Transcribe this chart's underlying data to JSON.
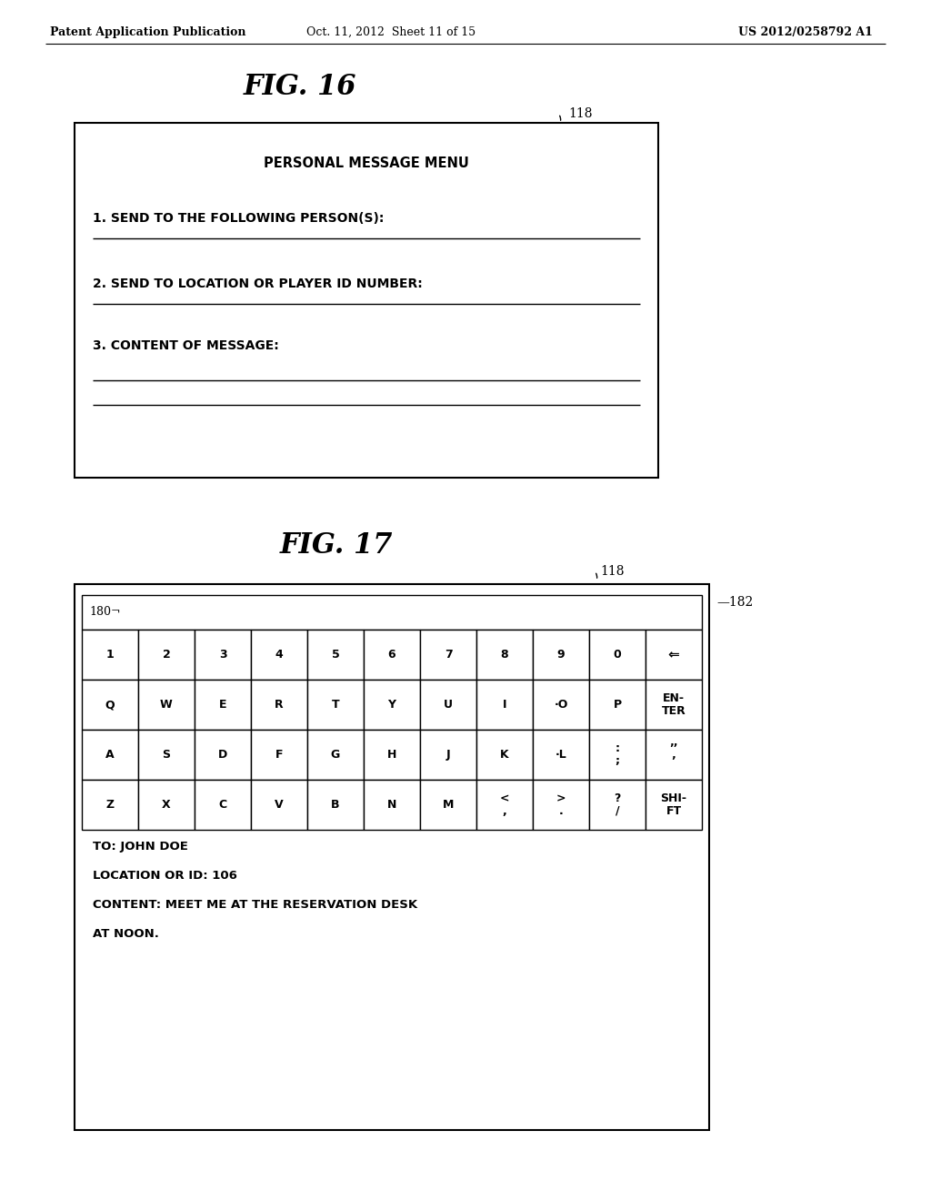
{
  "bg_color": "#ffffff",
  "header_left": "Patent Application Publication",
  "header_mid": "Oct. 11, 2012  Sheet 11 of 15",
  "header_right": "US 2012/0258792 A1",
  "fig16_title": "FIG. 16",
  "fig16_label": "118",
  "fig16_content_title": "PERSONAL MESSAGE MENU",
  "fig16_line1": "1. SEND TO THE FOLLOWING PERSON(S):",
  "fig16_line2": "2. SEND TO LOCATION OR PLAYER ID NUMBER:",
  "fig16_line3": "3. CONTENT OF MESSAGE:",
  "fig17_title": "FIG. 17",
  "fig17_label": "118",
  "fig17_label_180": "180",
  "fig17_label_182": "182",
  "keyboard_rows": [
    [
      "1",
      "2",
      "3",
      "4",
      "5",
      "6",
      "7",
      "8",
      "9",
      "0",
      "<<"
    ],
    [
      "Q",
      "W",
      "E",
      "R",
      "T",
      "Y",
      "U",
      "I",
      "·O",
      "P",
      "EN-\nTER"
    ],
    [
      "A",
      "S",
      "D",
      "F",
      "G",
      "H",
      "J",
      "K",
      "·L",
      ":\n;",
      "’’\n’"
    ],
    [
      "Z",
      "X",
      "C",
      "V",
      "B",
      "N",
      "M",
      "<\n,",
      ">\n.",
      "?\n/",
      "SHI-\nFT"
    ]
  ],
  "fig17_text_lines": [
    "TO: JOHN DOE",
    "LOCATION OR ID: 106",
    "CONTENT: MEET ME AT THE RESERVATION DESK",
    "AT NOON."
  ],
  "font_color": "#000000"
}
